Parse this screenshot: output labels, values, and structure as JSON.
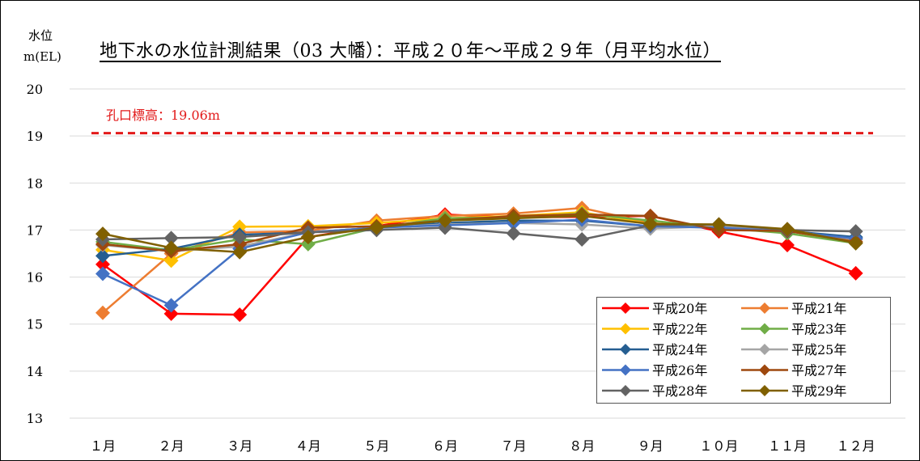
{
  "chart_data": {
    "type": "line",
    "title": "地下水の水位計測結果（03 大幡）：平成２０年～平成２９年（月平均水位）",
    "ylabel_line1": "水位",
    "ylabel_line2": "m(EL)",
    "xlabel": "",
    "categories": [
      "１月",
      "２月",
      "３月",
      "４月",
      "５月",
      "６月",
      "７月",
      "８月",
      "９月",
      "１０月",
      "１１月",
      "１２月"
    ],
    "ylim": [
      13,
      20
    ],
    "yticks": [
      "13",
      "14",
      "15",
      "16",
      "17",
      "18",
      "19",
      "20"
    ],
    "grid": true,
    "legend_position": "bottom-right",
    "reference_line": {
      "label": "孔口標高：19.06m",
      "value": 19.06,
      "color": "#e21a1a"
    },
    "series": [
      {
        "name": "平成20年",
        "color": "#ff0000",
        "values": [
          16.27,
          15.22,
          15.2,
          16.85,
          17.08,
          17.33,
          17.27,
          17.28,
          17.3,
          16.97,
          16.68,
          16.08
        ]
      },
      {
        "name": "平成21年",
        "color": "#ed7d31",
        "values": [
          15.24,
          16.5,
          16.95,
          16.98,
          17.2,
          17.3,
          17.35,
          17.47,
          17.15,
          17.05,
          16.98,
          16.75
        ]
      },
      {
        "name": "平成22年",
        "color": "#ffc000",
        "values": [
          16.58,
          16.35,
          17.07,
          17.08,
          17.15,
          17.25,
          17.3,
          17.38,
          17.13,
          17.08,
          16.98,
          16.75
        ]
      },
      {
        "name": "平成23年",
        "color": "#70ad47",
        "values": [
          16.75,
          16.57,
          16.8,
          16.7,
          17.05,
          17.25,
          17.27,
          17.35,
          17.2,
          17.05,
          16.93,
          16.72
        ]
      },
      {
        "name": "平成24年",
        "color": "#255e91",
        "values": [
          16.45,
          16.6,
          16.9,
          16.95,
          17.05,
          17.15,
          17.2,
          17.2,
          17.08,
          17.05,
          16.98,
          16.85
        ]
      },
      {
        "name": "平成25年",
        "color": "#a5a5a5",
        "values": [
          16.68,
          16.55,
          16.65,
          16.95,
          17.05,
          17.12,
          17.15,
          17.12,
          17.03,
          17.08,
          16.98,
          16.8
        ]
      },
      {
        "name": "平成26年",
        "color": "#4472c4",
        "values": [
          16.07,
          15.4,
          16.6,
          16.95,
          17.05,
          17.1,
          17.15,
          17.22,
          17.08,
          17.05,
          16.97,
          16.82
        ]
      },
      {
        "name": "平成27年",
        "color": "#9e480e",
        "values": [
          16.7,
          16.55,
          16.7,
          17.05,
          17.08,
          17.2,
          17.3,
          17.33,
          17.3,
          17.0,
          16.98,
          16.75
        ]
      },
      {
        "name": "平成28年",
        "color": "#636363",
        "values": [
          16.8,
          16.83,
          16.85,
          16.95,
          17.0,
          17.05,
          16.93,
          16.8,
          17.1,
          17.12,
          17.0,
          16.97
        ]
      },
      {
        "name": "平成29年",
        "color": "#806000",
        "values": [
          16.92,
          16.62,
          16.53,
          16.85,
          17.05,
          17.2,
          17.25,
          17.3,
          17.13,
          17.12,
          17.02,
          16.72
        ]
      }
    ]
  }
}
